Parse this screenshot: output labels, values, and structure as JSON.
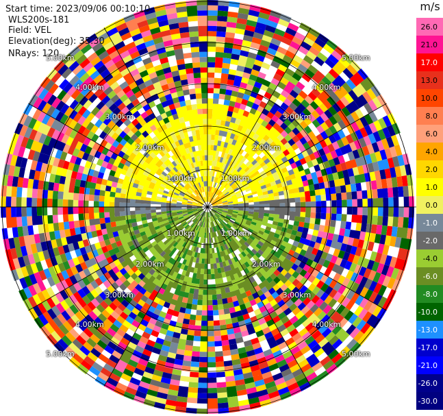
{
  "info": {
    "start_time": "Start time: 2023/09/06 00:10:10",
    "instrument": "WLS200s-181",
    "field": "Field: VEL",
    "elevation": "Elevation(deg): 35.30",
    "nrays": "NRays: 120"
  },
  "colorbar": {
    "unit": "m/s",
    "labels": [
      "26.0",
      "21.0",
      "17.0",
      "13.0",
      "10.0",
      "8.0",
      "6.0",
      "4.0",
      "2.0",
      "1.0",
      "0.0",
      "-1.0",
      "-2.0",
      "-4.0",
      "-6.0",
      "-8.0",
      "-10.0",
      "-13.0",
      "-17.0",
      "-21.0",
      "-26.0",
      "-30.0"
    ],
    "colors": [
      "#ff69b4",
      "#ff1493",
      "#ff0000",
      "#e8301c",
      "#ff4500",
      "#ff7f50",
      "#ffa07a",
      "#ffa500",
      "#ffd700",
      "#ffff00",
      "#f0f060",
      "#778899",
      "#696969",
      "#9acd32",
      "#6b8e23",
      "#228b22",
      "#006400",
      "#1e90ff",
      "#0000cd",
      "#0000ff",
      "#00008b",
      "#000080"
    ]
  },
  "ring_labels": [
    "1.00km",
    "2.00km",
    "3.00km",
    "4.00km",
    "5.00km"
  ],
  "plot": {
    "nrays": 120,
    "gates": 40
  }
}
